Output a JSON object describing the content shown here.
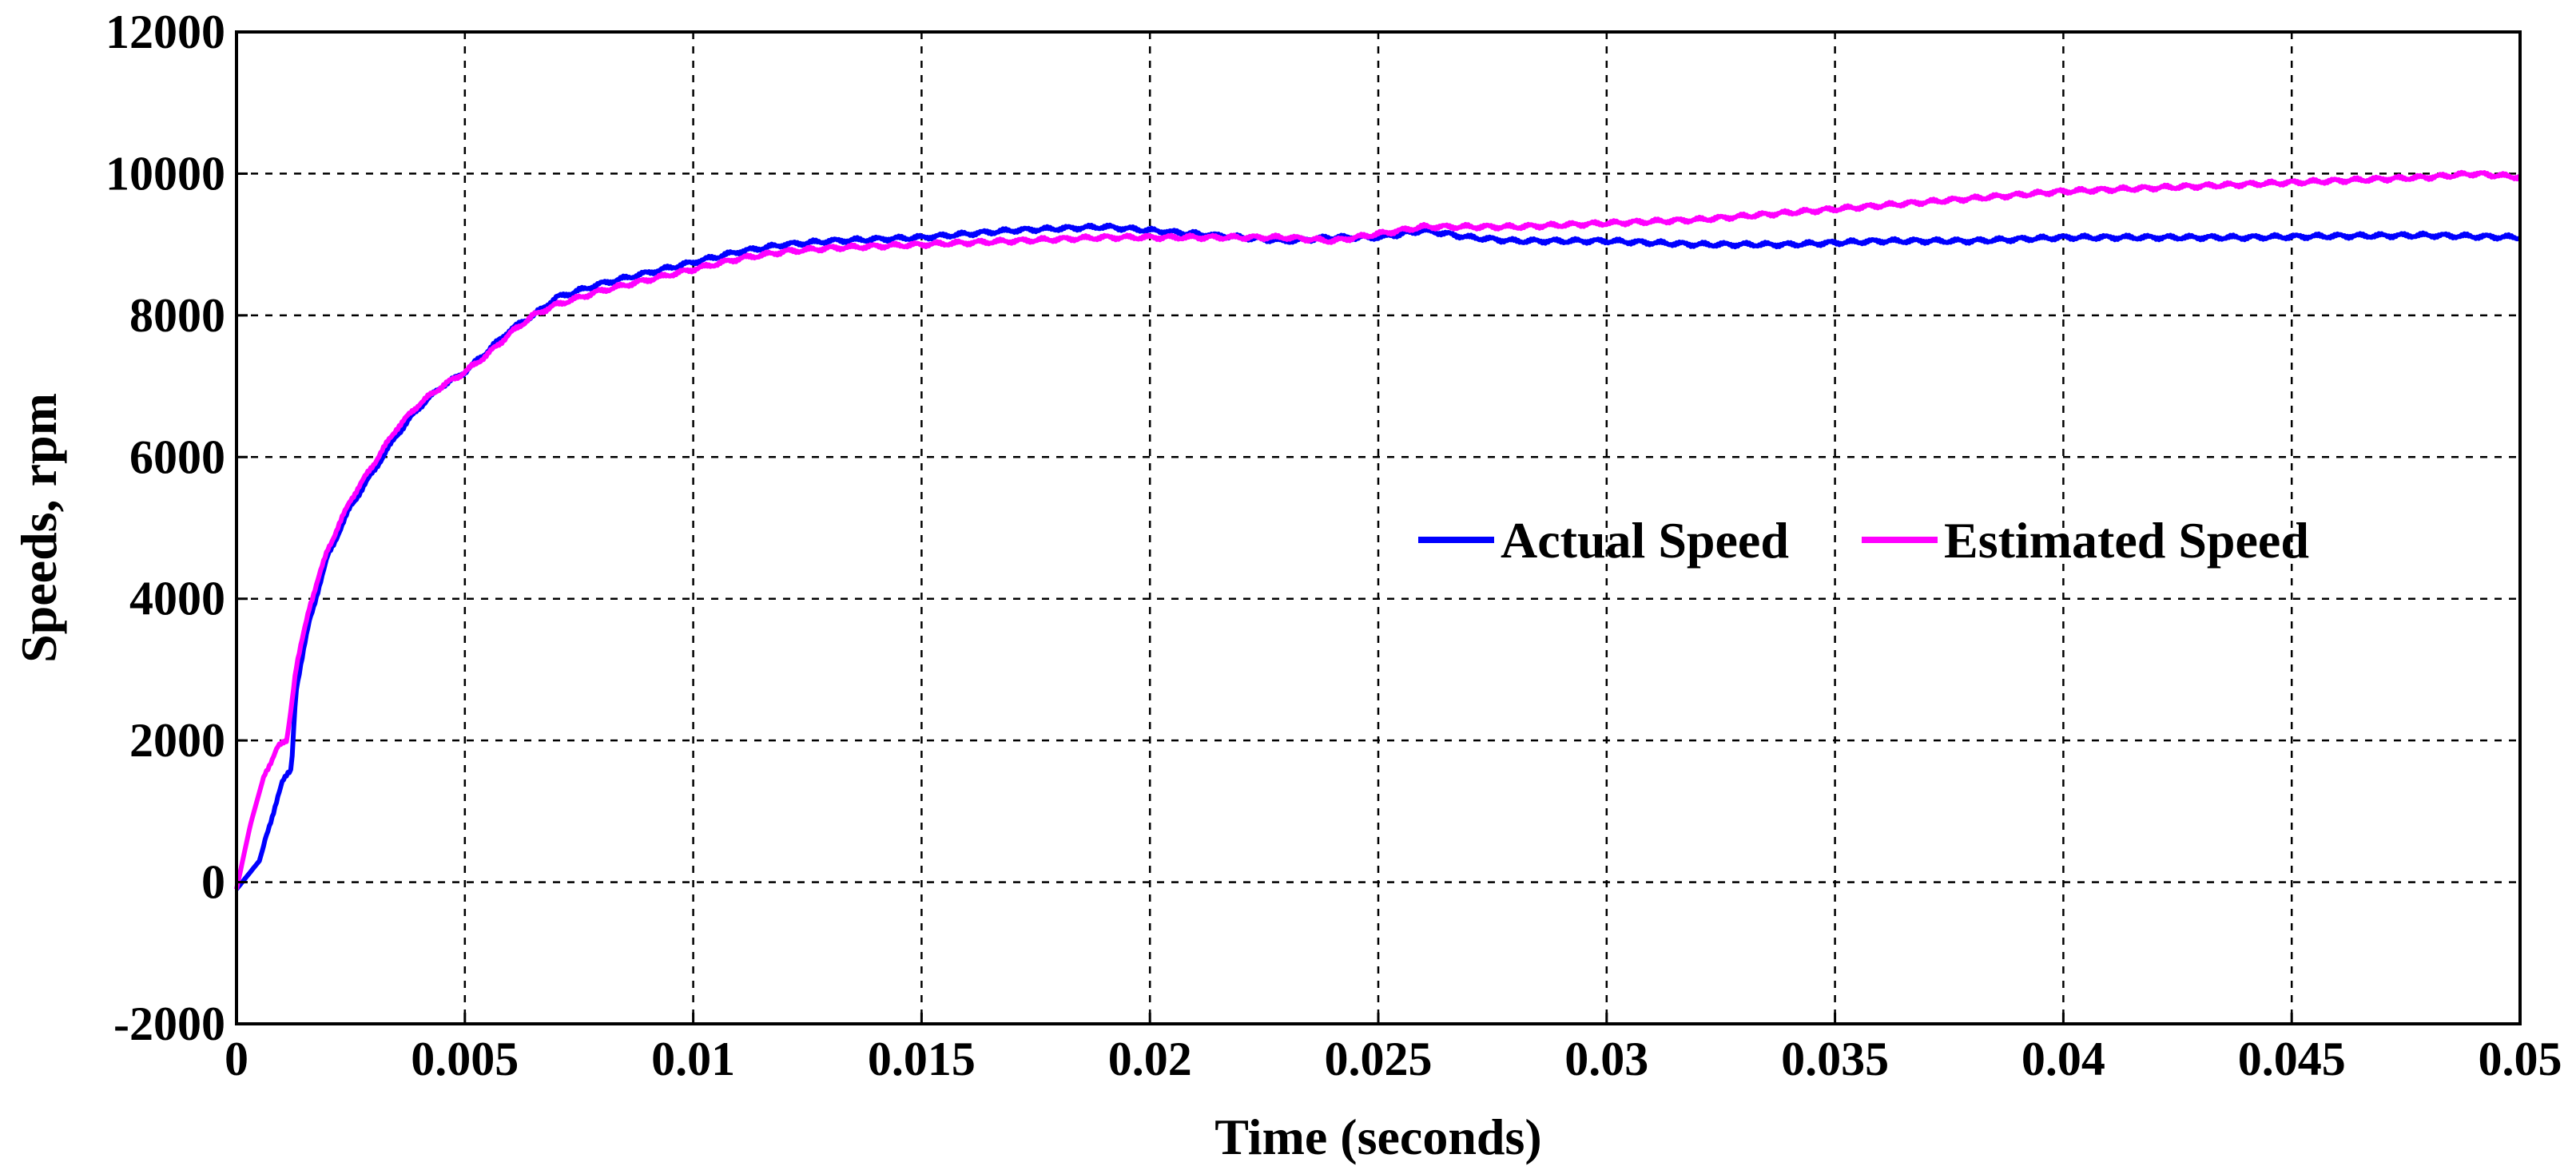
{
  "chart_data": {
    "type": "line",
    "title": "",
    "xlabel": "Time (seconds)",
    "ylabel": "Speeds, rpm",
    "xlim": [
      0,
      0.05
    ],
    "ylim": [
      -2000,
      12000
    ],
    "grid": true,
    "legend_position": "center-right",
    "x_ticks": [
      0,
      0.005,
      0.01,
      0.015,
      0.02,
      0.025,
      0.03,
      0.035,
      0.04,
      0.045,
      0.05
    ],
    "x_tick_labels": [
      "0",
      "0.005",
      "0.01",
      "0.015",
      "0.02",
      "0.025",
      "0.03",
      "0.035",
      "0.04",
      "0.045",
      "0.05"
    ],
    "y_ticks": [
      -2000,
      0,
      2000,
      4000,
      6000,
      8000,
      10000,
      12000
    ],
    "y_tick_labels": [
      "-2000",
      "0",
      "2000",
      "4000",
      "6000",
      "8000",
      "10000",
      "12000"
    ],
    "series": [
      {
        "name": "Actual Speed",
        "color": "#0000ff",
        "x": [
          0,
          0.0005,
          0.0009,
          0.001,
          0.0012,
          0.0013,
          0.0016,
          0.002,
          0.0025,
          0.003,
          0.0035,
          0.004,
          0.0045,
          0.005,
          0.0055,
          0.006,
          0.0065,
          0.007,
          0.0075,
          0.008,
          0.009,
          0.01,
          0.011,
          0.012,
          0.013,
          0.015,
          0.017,
          0.019,
          0.02,
          0.021,
          0.022,
          0.023,
          0.024,
          0.025,
          0.026,
          0.027,
          0.028,
          0.03,
          0.032,
          0.034,
          0.036,
          0.038,
          0.04,
          0.042,
          0.044,
          0.046,
          0.048,
          0.05
        ],
        "values": [
          -100,
          300,
          1200,
          1400,
          1600,
          2700,
          3700,
          4600,
          5300,
          5800,
          6300,
          6700,
          7000,
          7200,
          7500,
          7800,
          8000,
          8250,
          8350,
          8450,
          8600,
          8750,
          8900,
          9000,
          9050,
          9100,
          9200,
          9250,
          9200,
          9150,
          9100,
          9050,
          9100,
          9100,
          9200,
          9100,
          9050,
          9050,
          9000,
          9000,
          9050,
          9050,
          9100,
          9100,
          9100,
          9120,
          9130,
          9100
        ]
      },
      {
        "name": "Estimated Speed",
        "color": "#ff00ff",
        "x": [
          0,
          0.0003,
          0.0006,
          0.0009,
          0.0011,
          0.0013,
          0.0016,
          0.002,
          0.0025,
          0.003,
          0.0035,
          0.004,
          0.0045,
          0.005,
          0.0055,
          0.006,
          0.0065,
          0.007,
          0.0075,
          0.008,
          0.009,
          0.01,
          0.011,
          0.012,
          0.013,
          0.015,
          0.017,
          0.019,
          0.02,
          0.021,
          0.022,
          0.023,
          0.024,
          0.025,
          0.026,
          0.027,
          0.028,
          0.03,
          0.032,
          0.034,
          0.036,
          0.038,
          0.04,
          0.042,
          0.044,
          0.046,
          0.048,
          0.049,
          0.05
        ],
        "values": [
          -100,
          800,
          1500,
          1900,
          2000,
          3000,
          3900,
          4700,
          5400,
          5900,
          6400,
          6750,
          7000,
          7200,
          7450,
          7750,
          8000,
          8150,
          8250,
          8350,
          8500,
          8650,
          8800,
          8900,
          8950,
          9000,
          9050,
          9100,
          9100,
          9100,
          9100,
          9100,
          9050,
          9150,
          9250,
          9250,
          9250,
          9300,
          9350,
          9450,
          9550,
          9650,
          9750,
          9800,
          9850,
          9900,
          9950,
          10000,
          9950
        ]
      }
    ]
  }
}
